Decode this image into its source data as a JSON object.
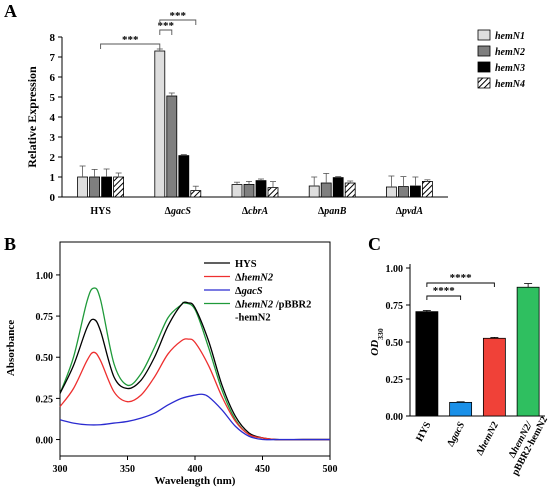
{
  "panels": [
    {
      "letter": "A"
    },
    {
      "letter": "B"
    },
    {
      "letter": "C"
    }
  ],
  "chart_data": [
    {
      "panel": "A",
      "type": "bar",
      "ylabel": "Relative Expression",
      "ylim": [
        0,
        8
      ],
      "yticks": [
        "0",
        "1",
        "2",
        "3",
        "4",
        "5",
        "6",
        "7",
        "8"
      ],
      "grid": false,
      "legend_position": "top-right",
      "categories": [
        {
          "prefix": "",
          "name": "HYS"
        },
        {
          "prefix": "Δ",
          "name": "gacS"
        },
        {
          "prefix": "Δ",
          "name": "cbrA"
        },
        {
          "prefix": "Δ",
          "name": "panB"
        },
        {
          "prefix": "Δ",
          "name": "pvdA"
        }
      ],
      "series": [
        {
          "name": "hemN1",
          "color": "#dedede",
          "pattern": "none",
          "values": [
            1.0,
            7.3,
            0.62,
            0.55,
            0.5
          ],
          "errors": [
            0.55,
            0.1,
            0.12,
            0.45,
            0.55
          ]
        },
        {
          "name": "hemN2",
          "color": "#7f7f7f",
          "pattern": "none",
          "values": [
            1.0,
            5.05,
            0.63,
            0.7,
            0.52
          ],
          "errors": [
            0.38,
            0.15,
            0.15,
            0.48,
            0.5
          ]
        },
        {
          "name": "hemN3",
          "color": "#000000",
          "pattern": "none",
          "values": [
            1.0,
            2.07,
            0.82,
            0.97,
            0.55
          ],
          "errors": [
            0.4,
            0.05,
            0.08,
            0.05,
            0.45
          ]
        },
        {
          "name": "hemN4",
          "color": "#ffffff",
          "pattern": "hatch",
          "values": [
            1.0,
            0.32,
            0.47,
            0.7,
            0.78
          ],
          "errors": [
            0.2,
            0.22,
            0.3,
            0.1,
            0.08
          ]
        }
      ],
      "significance": [
        {
          "label": "***",
          "from_group": 0,
          "to_group": 1,
          "to_series": 0
        },
        {
          "label": "***",
          "from_group": 1,
          "from_series": 0,
          "to_group": 1,
          "to_series": 1
        },
        {
          "label": "***",
          "from_group": 1,
          "from_series": 0,
          "to_group": 1,
          "to_series": 3
        }
      ]
    },
    {
      "panel": "B",
      "type": "line",
      "xlabel": "Wavelength (nm)",
      "ylabel": "Absorbance",
      "xlim": [
        300,
        500
      ],
      "ylim": [
        -0.1,
        1.2
      ],
      "xticks": [
        "300",
        "350",
        "400",
        "450",
        "500"
      ],
      "yticks": [
        "0.00",
        "0.25",
        "0.50",
        "0.75",
        "1.00"
      ],
      "ytick_values": [
        0,
        0.25,
        0.5,
        0.75,
        1.0
      ],
      "xtick_values": [
        300,
        350,
        400,
        450,
        500
      ],
      "grid": false,
      "legend_position": "top-right",
      "series": [
        {
          "name": "HYS",
          "legend_parts": [
            {
              "text": "HYS",
              "italic": false
            }
          ],
          "color": "#000000",
          "x": [
            300,
            310,
            320,
            325,
            330,
            340,
            350,
            360,
            370,
            380,
            390,
            395,
            400,
            410,
            420,
            430,
            440,
            450,
            460,
            480,
            500
          ],
          "y": [
            0.28,
            0.45,
            0.68,
            0.73,
            0.66,
            0.38,
            0.31,
            0.36,
            0.5,
            0.69,
            0.82,
            0.83,
            0.8,
            0.6,
            0.33,
            0.14,
            0.04,
            0.01,
            0.0,
            0.0,
            0.0
          ]
        },
        {
          "name": "ΔhemN2",
          "legend_parts": [
            {
              "text": "Δ",
              "italic": false
            },
            {
              "text": "hemN2",
              "italic": true
            }
          ],
          "color": "#ee2f2f",
          "x": [
            300,
            310,
            320,
            325,
            330,
            340,
            350,
            360,
            370,
            380,
            390,
            395,
            400,
            410,
            420,
            430,
            440,
            450,
            460,
            480,
            500
          ],
          "y": [
            0.2,
            0.31,
            0.48,
            0.53,
            0.48,
            0.29,
            0.23,
            0.27,
            0.38,
            0.52,
            0.6,
            0.61,
            0.59,
            0.45,
            0.26,
            0.11,
            0.03,
            0.01,
            0.0,
            0.0,
            0.0
          ]
        },
        {
          "name": "ΔgacS",
          "legend_parts": [
            {
              "text": "Δ",
              "italic": false
            },
            {
              "text": "gacS",
              "italic": true
            }
          ],
          "color": "#2b2bd0",
          "x": [
            300,
            310,
            320,
            330,
            340,
            350,
            360,
            370,
            380,
            390,
            400,
            405,
            410,
            420,
            430,
            440,
            450,
            460,
            480,
            500
          ],
          "y": [
            0.12,
            0.1,
            0.09,
            0.09,
            0.1,
            0.11,
            0.13,
            0.16,
            0.21,
            0.25,
            0.27,
            0.275,
            0.26,
            0.18,
            0.08,
            0.02,
            0.0,
            0.0,
            0.0,
            0.0
          ]
        },
        {
          "name": "ΔhemN2 /pBBR2-hemN2",
          "legend_parts": [
            {
              "text": "Δ",
              "italic": false
            },
            {
              "text": "hemN2",
              "italic": true
            },
            {
              "text": " /pBBR2",
              "italic": false
            }
          ],
          "legend_line2": "-hemN2",
          "color": "#1f9a3a",
          "x": [
            300,
            310,
            320,
            325,
            330,
            340,
            350,
            360,
            370,
            380,
            390,
            392,
            400,
            410,
            420,
            430,
            440,
            450,
            460,
            480,
            500
          ],
          "y": [
            0.28,
            0.5,
            0.84,
            0.92,
            0.85,
            0.46,
            0.33,
            0.4,
            0.56,
            0.74,
            0.82,
            0.83,
            0.79,
            0.56,
            0.3,
            0.12,
            0.03,
            0.01,
            0.0,
            0.0,
            0.0
          ]
        }
      ]
    },
    {
      "panel": "C",
      "type": "bar",
      "ylabel_parts": [
        {
          "text": "OD",
          "italic": true
        },
        {
          "text": "330",
          "sub": true
        }
      ],
      "ylim": [
        0,
        1.0
      ],
      "yticks": [
        "0.00",
        "0.25",
        "0.50",
        "0.75",
        "1.00"
      ],
      "ytick_values": [
        0,
        0.25,
        0.5,
        0.75,
        1.0
      ],
      "grid": false,
      "categories": [
        {
          "line1_parts": [
            {
              "text": "HYS",
              "italic": false
            }
          ],
          "line2": ""
        },
        {
          "line1_parts": [
            {
              "text": "Δ",
              "italic": false
            },
            {
              "text": "gacS",
              "italic": true
            }
          ],
          "line2": ""
        },
        {
          "line1_parts": [
            {
              "text": "Δ",
              "italic": false
            },
            {
              "text": "hemN2",
              "italic": true
            }
          ],
          "line2": ""
        },
        {
          "line1_parts": [
            {
              "text": "Δ",
              "italic": false
            },
            {
              "text": "hemN2/",
              "italic": true
            }
          ],
          "line2": "pBBR2-hemN2"
        }
      ],
      "values": [
        0.705,
        0.092,
        0.525,
        0.87
      ],
      "errors": [
        0.008,
        0.004,
        0.006,
        0.025
      ],
      "colors": [
        "#000000",
        "#1a90e8",
        "#f04138",
        "#2fbf60"
      ],
      "significance": [
        {
          "label": "****",
          "from": 0,
          "to": 1
        },
        {
          "label": "****",
          "from": 0,
          "to": 2
        }
      ]
    }
  ]
}
